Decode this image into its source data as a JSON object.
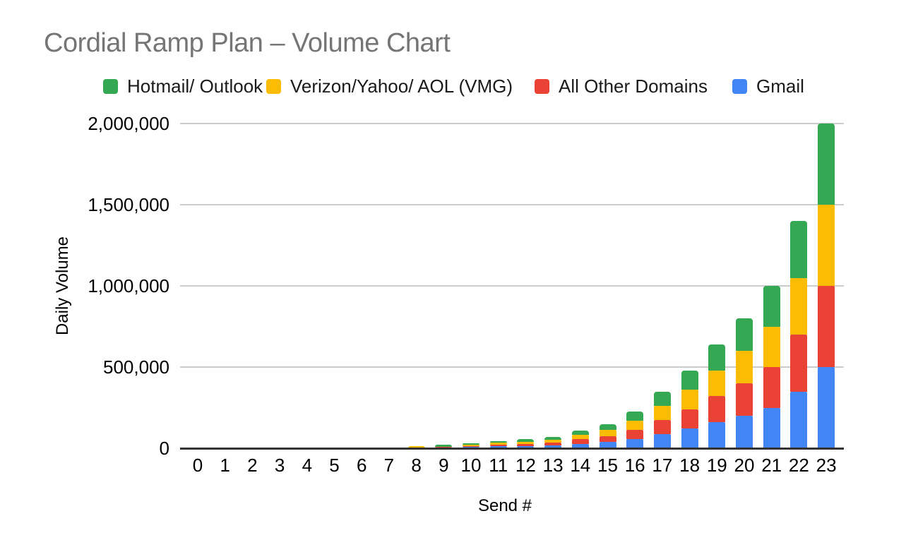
{
  "title": "Cordial Ramp Plan – Volume Chart",
  "legend": [
    {
      "label": "Hotmail/ Outlook",
      "color": "#34A853"
    },
    {
      "label": "Verizon/Yahoo/ AOL (VMG)",
      "color": "#FBBC04"
    },
    {
      "label": "All Other Domains",
      "color": "#EA4335"
    },
    {
      "label": "Gmail",
      "color": "#4285F4"
    }
  ],
  "chart_data": {
    "type": "bar",
    "stacked": true,
    "title": "Cordial Ramp Plan – Volume Chart",
    "xlabel": "Send #",
    "ylabel": "Daily Volume",
    "ylim": [
      0,
      2000000
    ],
    "grid": true,
    "legend_position": "top",
    "yticks": [
      0,
      500000,
      1000000,
      1500000,
      2000000
    ],
    "ytick_labels": [
      "0",
      "500,000",
      "1,000,000",
      "1,500,000",
      "2,000,000"
    ],
    "categories": [
      "0",
      "1",
      "2",
      "3",
      "4",
      "5",
      "6",
      "7",
      "8",
      "9",
      "10",
      "11",
      "12",
      "13",
      "14",
      "15",
      "16",
      "17",
      "18",
      "19",
      "20",
      "21",
      "22",
      "23"
    ],
    "series": [
      {
        "name": "Gmail",
        "color": "#4285F4",
        "values": [
          0,
          0,
          0,
          0,
          0,
          0,
          0,
          0,
          0,
          0,
          7500,
          11250,
          13750,
          16875,
          27500,
          37500,
          56250,
          87500,
          120000,
          160000,
          200000,
          250000,
          350000,
          500000
        ]
      },
      {
        "name": "All Other Domains",
        "color": "#EA4335",
        "values": [
          0,
          0,
          0,
          0,
          0,
          0,
          0,
          0,
          0,
          10000,
          7500,
          11250,
          13750,
          16875,
          27500,
          37500,
          56250,
          87500,
          120000,
          160000,
          200000,
          250000,
          350000,
          500000
        ]
      },
      {
        "name": "Verizon/Yahoo/ AOL (VMG)",
        "color": "#FBBC04",
        "values": [
          0,
          0,
          0,
          0,
          0,
          0,
          0,
          0,
          12500,
          0,
          7500,
          11250,
          13750,
          16875,
          27500,
          37500,
          56250,
          87500,
          120000,
          160000,
          200000,
          250000,
          350000,
          500000
        ]
      },
      {
        "name": "Hotmail/ Outlook",
        "color": "#34A853",
        "values": [
          0,
          0,
          0,
          0,
          0,
          0,
          0,
          0,
          0,
          10000,
          7500,
          11250,
          13750,
          16875,
          27500,
          37500,
          56250,
          87500,
          120000,
          160000,
          200000,
          250000,
          350000,
          500000
        ]
      }
    ],
    "bar_totals": [
      0,
      0,
      0,
      0,
      0,
      0,
      0,
      0,
      12500,
      20000,
      30000,
      45000,
      55000,
      67500,
      110000,
      150000,
      225000,
      350000,
      480000,
      640000,
      800000,
      1000000,
      1400000,
      2000000
    ]
  }
}
